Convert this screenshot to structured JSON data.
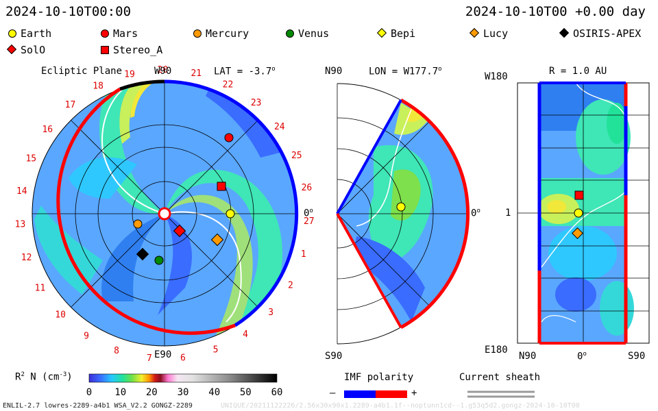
{
  "header": {
    "timestamp_left": "2024-10-10T00:00",
    "timestamp_right": "2024-10-10T00 +0.00 day"
  },
  "legend": {
    "bodies": [
      {
        "label": "Earth",
        "marker": "circle",
        "color": "#ffff00"
      },
      {
        "label": "Mars",
        "marker": "circle",
        "color": "#ff0000"
      },
      {
        "label": "Mercury",
        "marker": "circle",
        "color": "#ff9a00"
      },
      {
        "label": "Venus",
        "marker": "circle",
        "color": "#008800"
      },
      {
        "label": "Bepi",
        "marker": "diamond",
        "color": "#ffff00"
      },
      {
        "label": "Lucy",
        "marker": "diamond",
        "color": "#ff9a00"
      },
      {
        "label": "OSIRIS-APEX",
        "marker": "diamond",
        "color": "#000000"
      },
      {
        "label": "SolO",
        "marker": "diamond",
        "color": "#ff0000"
      },
      {
        "label": "Stereo_A",
        "marker": "square",
        "color": "#ff0000"
      }
    ]
  },
  "panels": {
    "ecliptic": {
      "title": "Ecliptic Plane",
      "lat_label": "LAT = -3.7",
      "degree_sign": "o",
      "top_label": "W90",
      "bottom_label": "E90",
      "right_label": "0",
      "sector_labels": [
        "19",
        "20",
        "21",
        "22",
        "23",
        "24",
        "25",
        "26",
        "27",
        "1",
        "2",
        "3",
        "4",
        "5",
        "6",
        "7",
        "8",
        "9",
        "10",
        "11",
        "12",
        "13",
        "14",
        "15",
        "16",
        "17",
        "18"
      ]
    },
    "meridional": {
      "top_label": "N90",
      "lon_label": "LON = W177.7",
      "bottom_label": "S90",
      "right_label": "0"
    },
    "radial": {
      "title": "R = 1.0 AU",
      "top_label": "W180",
      "mid_label": "1",
      "bottom_label": "E180",
      "x_left": "N90",
      "x_mid": "0",
      "x_right": "S90"
    }
  },
  "colorbar": {
    "label": "R",
    "label_sup": "2",
    "label_rest": " N (cm",
    "label_exp": "-3",
    "label_close": ")",
    "ticks": [
      "0",
      "10",
      "20",
      "30",
      "40",
      "50",
      "60"
    ],
    "range": [
      0,
      60
    ]
  },
  "imf": {
    "title": "IMF polarity",
    "minus": "–",
    "plus": "+",
    "neg_color": "#0000ff",
    "pos_color": "#ff0000"
  },
  "sheath": {
    "title": "Current sheath"
  },
  "footer": {
    "model": "ENLIL-2.7 lowres-2289-a4b1 WSA_V2.2 GONGZ-2289",
    "run_id": "UNIQUE/20211122226/2.56x30x90x1.2289-a4b1.1f--noptunn1cd--1.g53q5d2.gongz-2024-10-10T00"
  },
  "chart_data": {
    "type": "heatmap",
    "quantity": "R^2 N (cm^-3)",
    "color_range": [
      0,
      60
    ],
    "ecliptic_sector_count": 27,
    "lat": -3.7,
    "lon": "W177.7",
    "radius_au": 1.0
  }
}
